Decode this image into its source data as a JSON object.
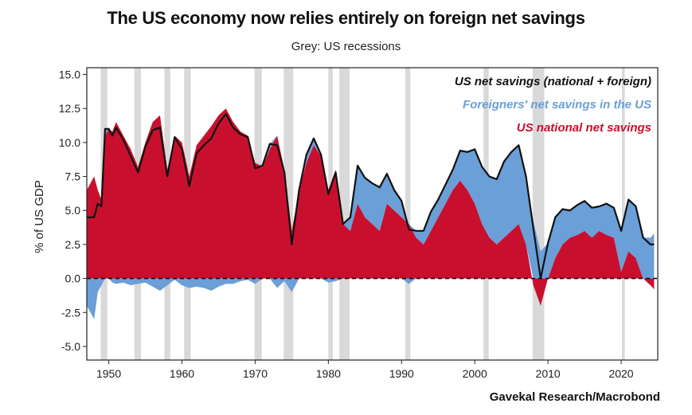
{
  "title": "The US economy now relies entirely on foreign net savings",
  "subtitle": "Grey: US recessions",
  "source": "Gavekal Research/Macrobond",
  "colors": {
    "national": "#c8102e",
    "foreign": "#6a9fd8",
    "total": "#111111",
    "recession": "#d9d9d9"
  },
  "chart_data": {
    "type": "area",
    "ylabel": "% of US GDP",
    "xlim": [
      1947,
      2025
    ],
    "ylim": [
      -6,
      15.5
    ],
    "xticks": [
      1950,
      1960,
      1970,
      1980,
      1990,
      2000,
      2010,
      2020
    ],
    "yticks": [
      "15.0",
      "12.5",
      "10.0",
      "7.5",
      "5.0",
      "2.5",
      "0.0",
      "-2.5",
      "-5.0"
    ],
    "legend": [
      {
        "name": "US net savings (national + foreign)",
        "color": "#111111"
      },
      {
        "name": "Foreigners' net savings in the US",
        "color": "#6a9fd8"
      },
      {
        "name": "US national net savings",
        "color": "#c8102e"
      }
    ],
    "recessions": [
      [
        1948.9,
        1949.8
      ],
      [
        1953.5,
        1954.4
      ],
      [
        1957.6,
        1958.4
      ],
      [
        1960.3,
        1961.2
      ],
      [
        1969.9,
        1970.9
      ],
      [
        1973.9,
        1975.2
      ],
      [
        1980.0,
        1980.6
      ],
      [
        1981.5,
        1982.9
      ],
      [
        1990.5,
        1991.2
      ],
      [
        2001.2,
        2001.9
      ],
      [
        2007.9,
        2009.5
      ],
      [
        2020.1,
        2020.5
      ]
    ],
    "x": [
      1947,
      1948,
      1948.5,
      1949,
      1949.5,
      1950,
      1950.5,
      1951,
      1952,
      1953,
      1954,
      1955,
      1956,
      1957,
      1958,
      1959,
      1960,
      1961,
      1962,
      1963,
      1964,
      1965,
      1966,
      1967,
      1968,
      1969,
      1970,
      1971,
      1972,
      1973,
      1974,
      1975,
      1976,
      1977,
      1978,
      1979,
      1980,
      1981,
      1982,
      1983,
      1984,
      1985,
      1986,
      1987,
      1988,
      1989,
      1990,
      1991,
      1992,
      1993,
      1994,
      1995,
      1996,
      1997,
      1998,
      1999,
      2000,
      2001,
      2002,
      2003,
      2004,
      2005,
      2006,
      2007,
      2008,
      2009,
      2010,
      2011,
      2012,
      2013,
      2014,
      2015,
      2016,
      2017,
      2018,
      2019,
      2020,
      2021,
      2022,
      2023,
      2024,
      2024.5
    ],
    "national": [
      6.5,
      7.5,
      6.5,
      5.8,
      10.5,
      11.0,
      10.8,
      11.5,
      10.5,
      9.5,
      8.2,
      10.0,
      11.5,
      12.0,
      8.0,
      10.5,
      10.0,
      7.5,
      9.8,
      10.5,
      11.2,
      12.0,
      12.5,
      11.5,
      10.8,
      10.5,
      8.5,
      8.2,
      9.5,
      10.5,
      8.0,
      3.5,
      6.5,
      8.5,
      9.8,
      9.0,
      6.5,
      8.0,
      4.0,
      3.5,
      5.5,
      4.5,
      4.0,
      3.5,
      5.5,
      5.0,
      4.5,
      4.0,
      3.0,
      2.5,
      3.5,
      4.5,
      5.5,
      6.5,
      7.2,
      6.5,
      5.5,
      4.0,
      3.0,
      2.5,
      3.0,
      3.5,
      4.0,
      2.5,
      -0.5,
      -2.0,
      0.0,
      1.5,
      2.5,
      3.0,
      3.2,
      3.5,
      3.0,
      3.5,
      3.2,
      3.0,
      0.5,
      2.0,
      1.5,
      0.0,
      -0.5,
      -0.8
    ],
    "foreign": [
      -2.0,
      -3.0,
      -1.0,
      -0.5,
      0.5,
      0.0,
      -0.3,
      -0.4,
      -0.3,
      -0.5,
      -0.4,
      -0.3,
      -0.6,
      -0.9,
      -0.5,
      -0.1,
      -0.5,
      -0.7,
      -0.6,
      -0.7,
      -0.9,
      -0.6,
      -0.4,
      -0.4,
      -0.2,
      -0.1,
      -0.4,
      0.1,
      0.4,
      -0.7,
      -0.2,
      -1.0,
      0.0,
      0.6,
      0.5,
      0.1,
      -0.3,
      -0.2,
      0.0,
      1.0,
      2.8,
      2.9,
      3.0,
      3.2,
      2.2,
      1.5,
      1.2,
      -0.4,
      0.5,
      1.0,
      1.4,
      1.3,
      1.4,
      1.5,
      2.2,
      2.8,
      4.0,
      4.2,
      4.5,
      4.8,
      5.6,
      5.8,
      5.8,
      5.0,
      4.2,
      2.0,
      2.6,
      3.0,
      2.6,
      2.0,
      2.2,
      2.2,
      2.2,
      1.8,
      2.3,
      2.2,
      3.0,
      3.8,
      3.8,
      3.0,
      3.0,
      3.3
    ]
  }
}
